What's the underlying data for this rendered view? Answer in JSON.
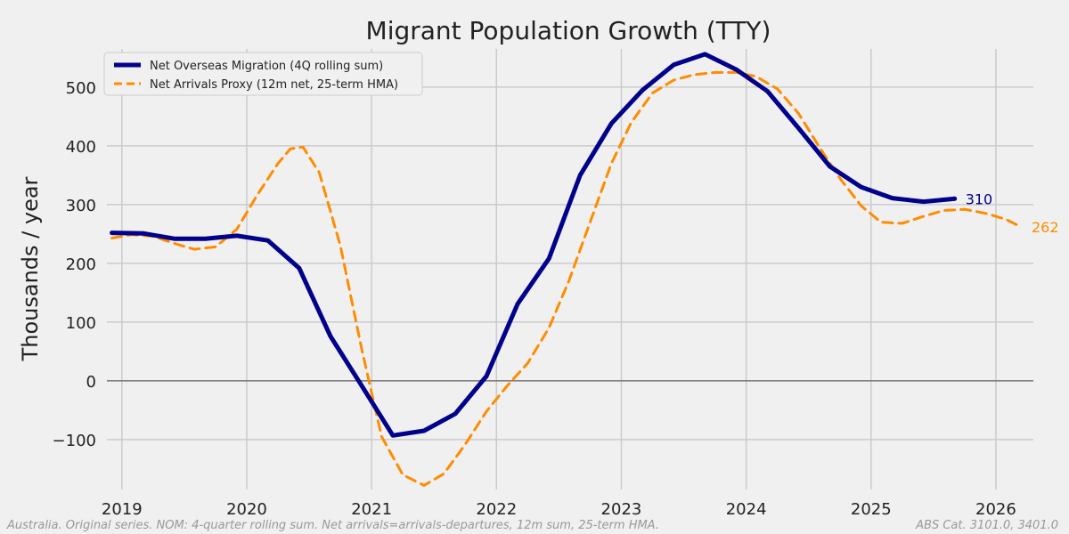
{
  "chart_data": {
    "type": "line",
    "title": "Migrant Population Growth (TTY)",
    "xlabel": "",
    "ylabel": "Thousands / year",
    "xlim": [
      2018.88,
      2026.3
    ],
    "ylim": [
      -185,
      565
    ],
    "x_ticks": [
      2019,
      2020,
      2021,
      2022,
      2023,
      2024,
      2025,
      2026
    ],
    "y_ticks": [
      -100,
      0,
      100,
      200,
      300,
      400,
      500
    ],
    "y_tick_labels": [
      "−100",
      "0",
      "100",
      "200",
      "300",
      "400",
      "500"
    ],
    "grid": true,
    "legend_position": "top-left",
    "series": [
      {
        "name": "Net Overseas Migration (4Q rolling sum)",
        "color": "#00008b",
        "style": "solid",
        "end_label": "310",
        "x": [
          2018.92,
          2019.17,
          2019.42,
          2019.67,
          2019.92,
          2020.17,
          2020.42,
          2020.67,
          2020.92,
          2021.17,
          2021.42,
          2021.67,
          2021.92,
          2022.17,
          2022.42,
          2022.67,
          2022.92,
          2023.17,
          2023.42,
          2023.67,
          2023.92,
          2024.17,
          2024.42,
          2024.67,
          2024.92,
          2025.17,
          2025.42,
          2025.67
        ],
        "y": [
          252,
          251,
          242,
          242,
          247,
          239,
          192,
          76,
          -8,
          -93,
          -85,
          -56,
          8,
          131,
          208,
          350,
          438,
          495,
          538,
          556,
          530,
          493,
          430,
          365,
          330,
          311,
          305,
          310
        ]
      },
      {
        "name": "Net Arrivals Proxy (12m net, 25-term HMA)",
        "color": "#ff8c00",
        "style": "dashed",
        "end_label": "262",
        "x": [
          2018.92,
          2019.08,
          2019.25,
          2019.42,
          2019.58,
          2019.75,
          2019.92,
          2020.08,
          2020.25,
          2020.35,
          2020.45,
          2020.58,
          2020.75,
          2020.92,
          2021.08,
          2021.25,
          2021.42,
          2021.58,
          2021.75,
          2021.92,
          2022.08,
          2022.25,
          2022.42,
          2022.58,
          2022.75,
          2022.92,
          2023.08,
          2023.25,
          2023.42,
          2023.58,
          2023.75,
          2023.92,
          2024.08,
          2024.25,
          2024.42,
          2024.58,
          2024.75,
          2024.92,
          2025.08,
          2025.25,
          2025.42,
          2025.58,
          2025.75,
          2025.92,
          2026.08,
          2026.2
        ],
        "y": [
          243,
          249,
          246,
          234,
          224,
          228,
          258,
          315,
          370,
          395,
          398,
          355,
          230,
          55,
          -95,
          -160,
          -178,
          -158,
          -108,
          -52,
          -10,
          30,
          90,
          170,
          270,
          370,
          440,
          490,
          512,
          521,
          525,
          525,
          518,
          497,
          455,
          400,
          345,
          298,
          270,
          268,
          280,
          290,
          292,
          285,
          275,
          262
        ]
      }
    ],
    "reference_line_y": 0
  },
  "footer": {
    "left": "Australia. Original series. NOM: 4-quarter rolling sum. Net arrivals=arrivals-departures, 12m sum, 25-term HMA.",
    "right": "ABS Cat. 3101.0, 3401.0"
  }
}
